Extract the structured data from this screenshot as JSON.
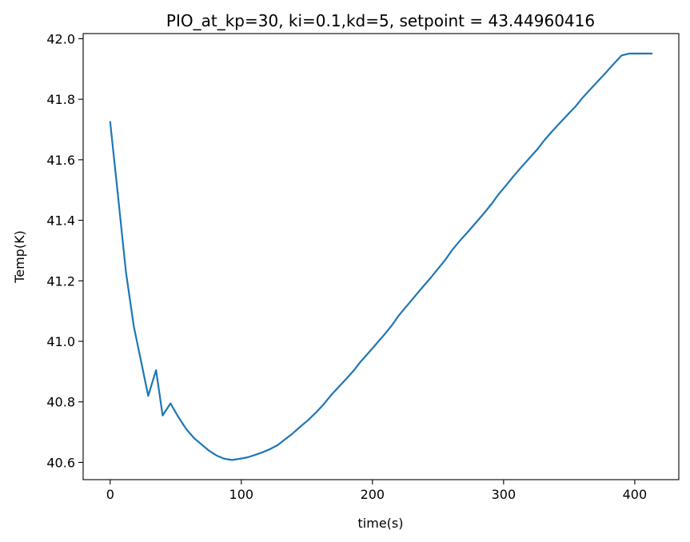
{
  "chart_data": {
    "type": "line",
    "title": "PIO_at_kp=30, ki=0.1,kd=5, setpoint = 43.44960416",
    "xlabel": "time(s)",
    "ylabel": "Temp(K)",
    "xlim": [
      -20.6,
      433.6
    ],
    "ylim": [
      40.543,
      42.017
    ],
    "xticks": [
      0,
      100,
      200,
      300,
      400
    ],
    "xtick_labels": [
      "0",
      "100",
      "200",
      "300",
      "400"
    ],
    "yticks": [
      40.6,
      40.8,
      41.0,
      41.2,
      41.4,
      41.6,
      41.8,
      42.0
    ],
    "ytick_labels": [
      "40.6",
      "40.8",
      "41.0",
      "41.2",
      "41.4",
      "41.6",
      "41.8",
      "42.0"
    ],
    "grid": false,
    "series": [
      {
        "name": "Temp",
        "color": "#1f77b4",
        "x": [
          0,
          6,
          12,
          18,
          24,
          29,
          35,
          40,
          46,
          52,
          58,
          64,
          70,
          75,
          81,
          87,
          93,
          99,
          105,
          110,
          116,
          122,
          128,
          133,
          139,
          145,
          151,
          157,
          163,
          168,
          174,
          180,
          186,
          191,
          197,
          203,
          209,
          215,
          220,
          226,
          232,
          238,
          244,
          250,
          256,
          261,
          267,
          273,
          279,
          285,
          291,
          296,
          302,
          308,
          314,
          320,
          326,
          331,
          337,
          343,
          349,
          355,
          360,
          366,
          372,
          378,
          384,
          390,
          396,
          401,
          407,
          413
        ],
        "y": [
          41.725,
          41.48,
          41.23,
          41.05,
          40.925,
          40.82,
          40.905,
          40.755,
          40.795,
          40.75,
          40.71,
          40.68,
          40.658,
          40.64,
          40.623,
          40.612,
          40.608,
          40.612,
          40.617,
          40.624,
          40.633,
          40.644,
          40.658,
          40.675,
          40.695,
          40.718,
          40.74,
          40.765,
          40.793,
          40.82,
          40.848,
          40.876,
          40.905,
          40.933,
          40.962,
          40.992,
          41.022,
          41.054,
          41.085,
          41.116,
          41.147,
          41.178,
          41.208,
          41.24,
          41.272,
          41.303,
          41.334,
          41.363,
          41.393,
          41.423,
          41.455,
          41.485,
          41.516,
          41.548,
          41.578,
          41.607,
          41.636,
          41.664,
          41.694,
          41.722,
          41.75,
          41.777,
          41.804,
          41.832,
          41.86,
          41.888,
          41.917,
          41.945,
          41.951,
          41.951,
          41.951,
          41.951
        ]
      }
    ]
  }
}
